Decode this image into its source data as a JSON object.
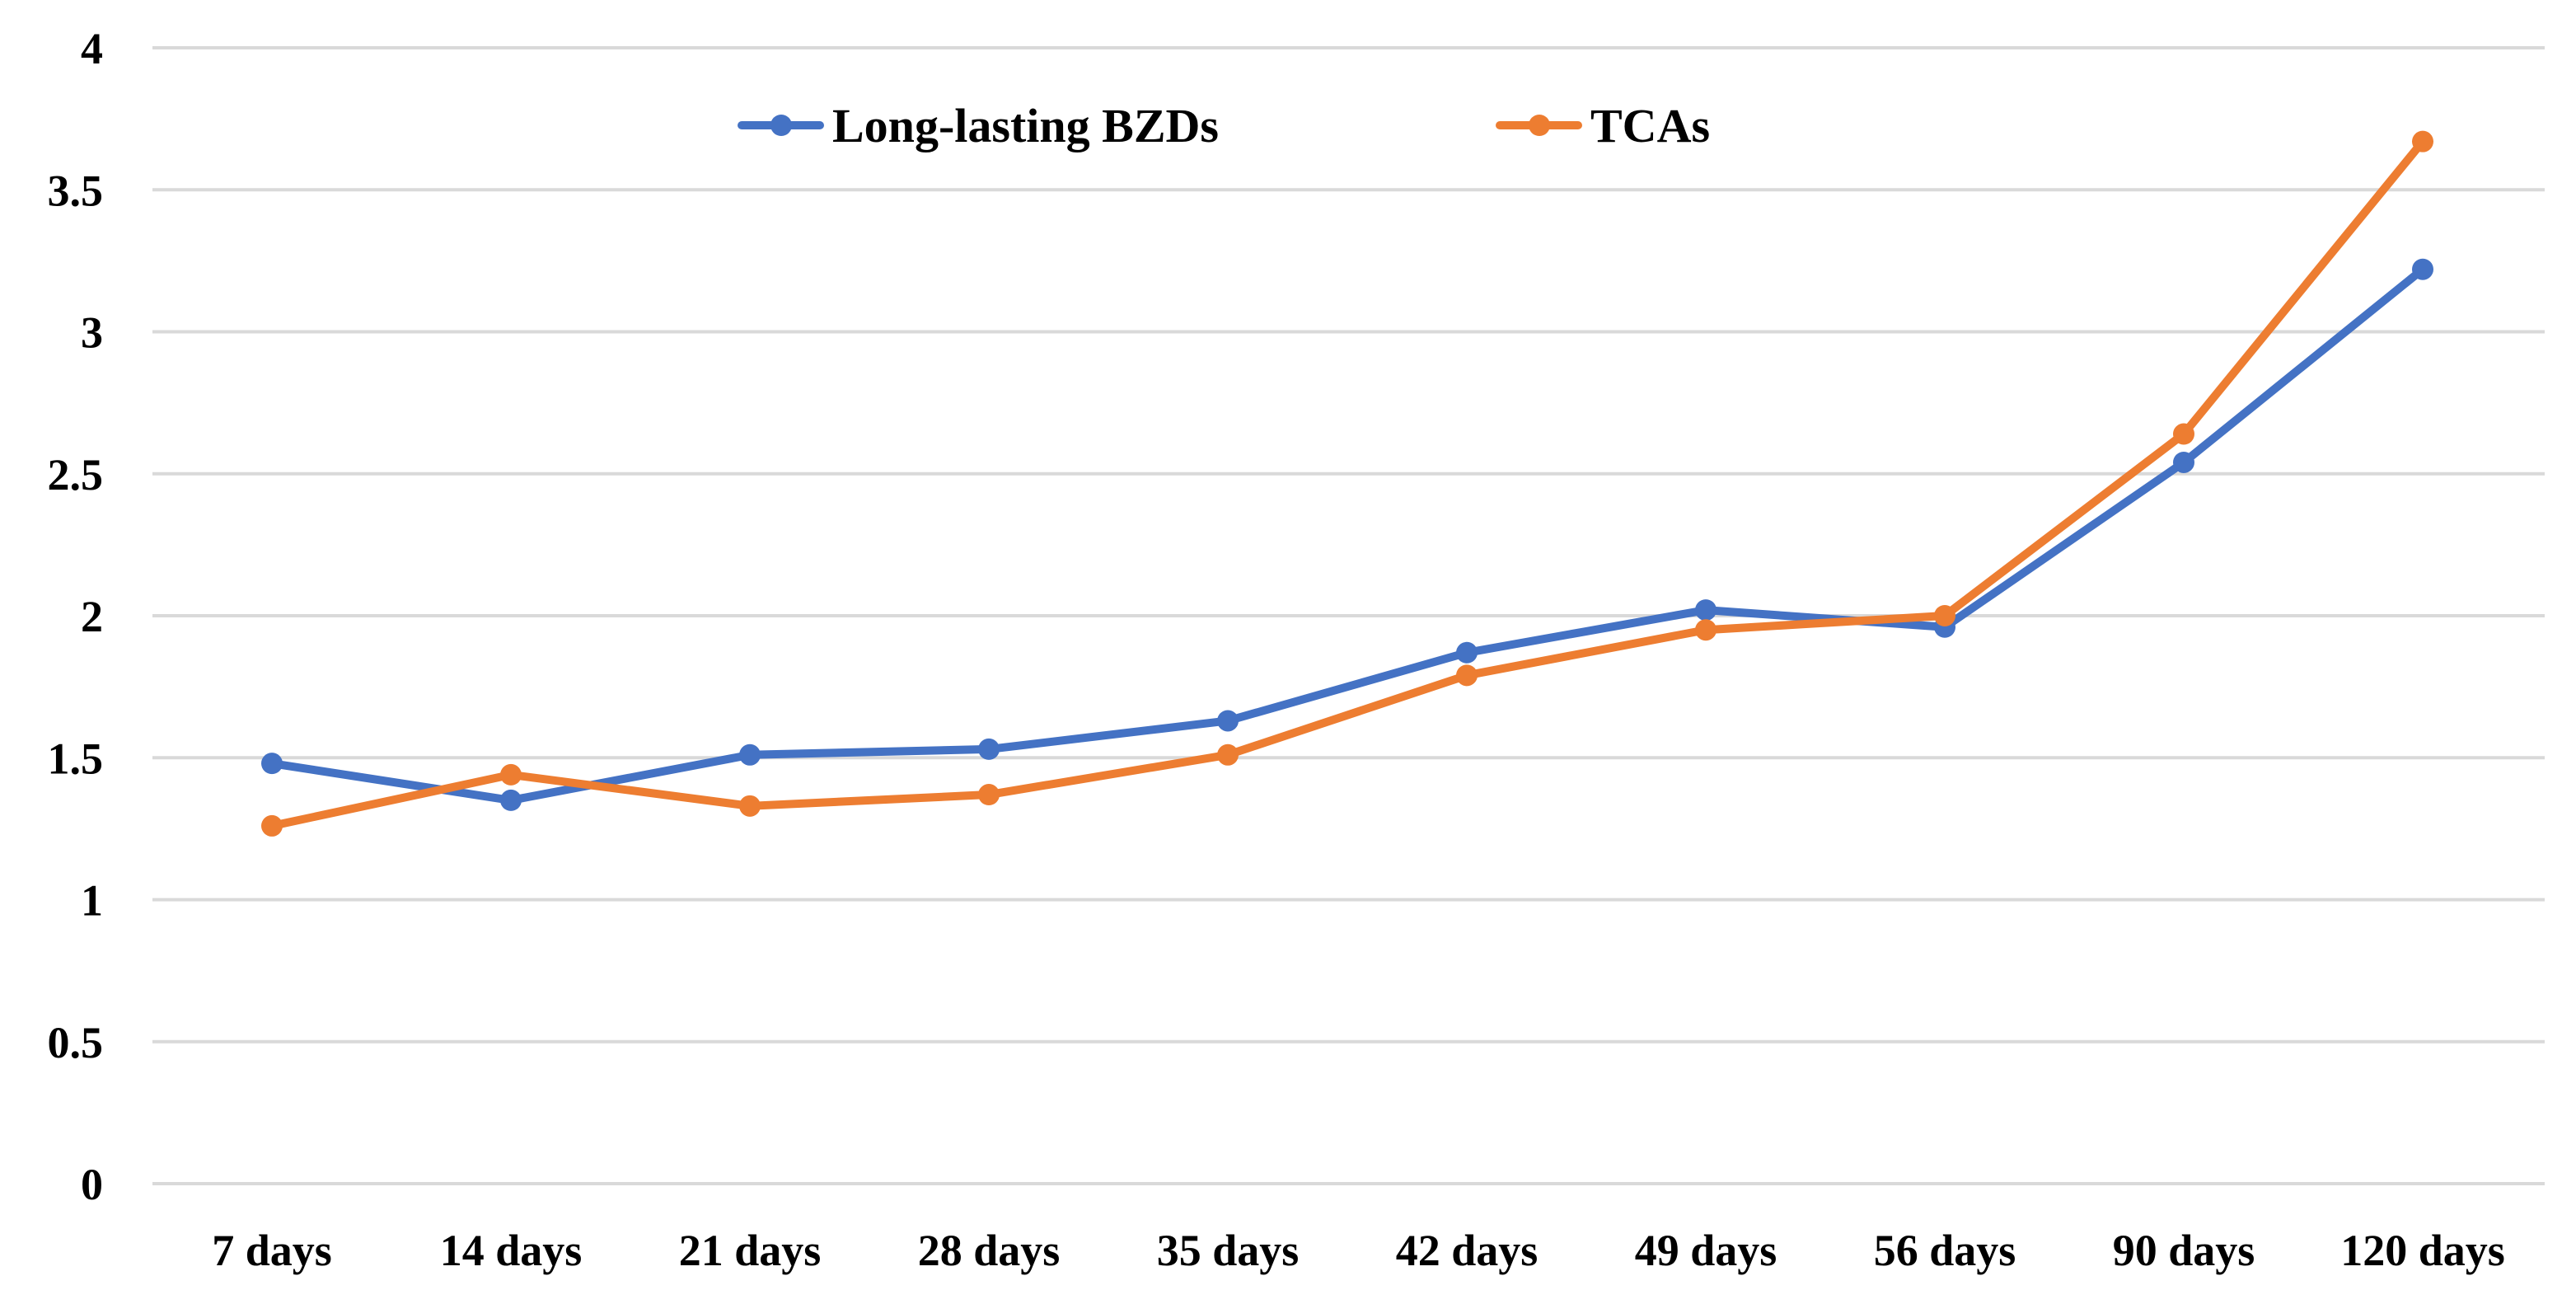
{
  "chart_data": {
    "type": "line",
    "title": "",
    "xlabel": "",
    "ylabel": "",
    "categories": [
      "7 days",
      "14 days",
      "21 days",
      "28 days",
      "35 days",
      "42 days",
      "49 days",
      "56 days",
      "90 days",
      "120 days"
    ],
    "ylim": [
      0,
      4
    ],
    "yticks": [
      0,
      0.5,
      1,
      1.5,
      2,
      2.5,
      3,
      3.5,
      4
    ],
    "ytick_labels": [
      "0",
      "0.5",
      "1",
      "1.5",
      "2",
      "2.5",
      "3",
      "3.5",
      "4"
    ],
    "grid": true,
    "legend_position": "top-center",
    "series": [
      {
        "name": "Long-lasting BZDs",
        "color": "#4472C4",
        "values": [
          1.48,
          1.35,
          1.51,
          1.53,
          1.63,
          1.87,
          2.02,
          1.96,
          2.54,
          3.22
        ]
      },
      {
        "name": "TCAs",
        "color": "#ED7D31",
        "values": [
          1.26,
          1.44,
          1.33,
          1.37,
          1.51,
          1.79,
          1.95,
          2.0,
          2.64,
          3.67
        ]
      }
    ]
  }
}
